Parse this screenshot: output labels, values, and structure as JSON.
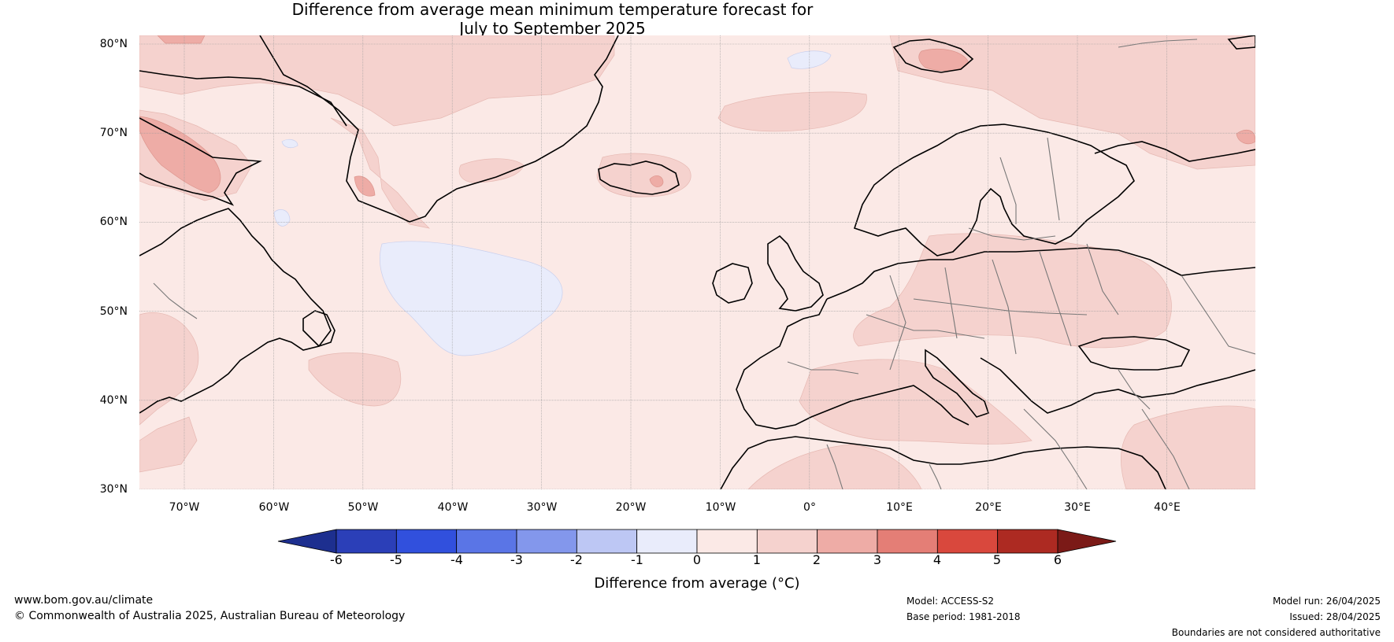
{
  "title": {
    "line1": "Difference from average mean minimum temperature forecast for",
    "line2": "July to September 2025"
  },
  "map": {
    "lat_labels": [
      "80°N",
      "70°N",
      "60°N",
      "50°N",
      "40°N",
      "30°N"
    ],
    "lon_labels": [
      "70°W",
      "60°W",
      "50°W",
      "40°W",
      "30°W",
      "20°W",
      "10°W",
      "0°",
      "10°E",
      "20°E",
      "30°E",
      "40°E"
    ],
    "background_color": "#fbe9e6",
    "coastline_color": "#000000",
    "border_color": "#777777"
  },
  "colorbar": {
    "ticks": [
      "-6",
      "-5",
      "-4",
      "-3",
      "-2",
      "-1",
      "0",
      "1",
      "2",
      "3",
      "4",
      "5",
      "6"
    ],
    "colors": [
      "#1d2f8f",
      "#2b3fb8",
      "#3150dd",
      "#5a75e6",
      "#8397ec",
      "#bdc7f4",
      "#e9ecfb",
      "#fbe9e6",
      "#f5d2ce",
      "#eeaca6",
      "#e47e76",
      "#d9483d",
      "#ad2a22",
      "#7b1a17"
    ],
    "label": "Difference from average (°C)"
  },
  "footer": {
    "website": "www.bom.gov.au/climate",
    "copyright": "© Commonwealth of Australia 2025, Australian Bureau of Meteorology",
    "model": "Model: ACCESS-S2",
    "base_period": "Base period: 1981-2018",
    "model_run": "Model run: 26/04/2025",
    "issued": "Issued: 28/04/2025",
    "disclaimer": "Boundaries are not considered authoritative"
  }
}
